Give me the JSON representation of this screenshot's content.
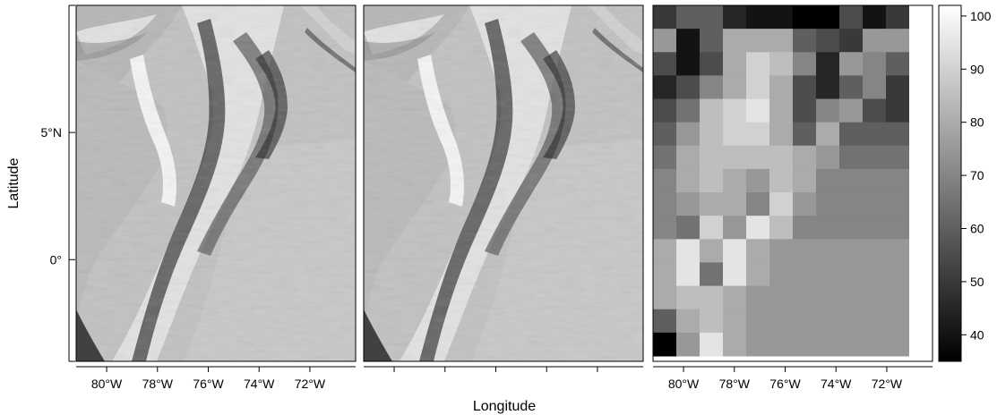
{
  "figure": {
    "y_axis_title": "Latitude",
    "x_axis_title": "Longitude",
    "lat_ticks": [
      {
        "label": "5°N",
        "lat": 5
      },
      {
        "label": "0°",
        "lat": 0
      }
    ],
    "lon_ticks": [
      {
        "label": "80°W",
        "lon": -80
      },
      {
        "label": "78°W",
        "lon": -78
      },
      {
        "label": "76°W",
        "lon": -76
      },
      {
        "label": "74°W",
        "lon": -74
      },
      {
        "label": "72°W",
        "lon": -72
      }
    ],
    "extent": {
      "lon_min": -81.2,
      "lon_max": -70.2,
      "lat_min": -4.0,
      "lat_max": 10.0
    }
  },
  "panels": [
    {
      "id": "left",
      "content": "shaded-relief-terrain",
      "x_tick_labels_visible": true,
      "y_axis_visible": true
    },
    {
      "id": "middle",
      "content": "shaded-relief-terrain",
      "x_tick_labels_visible": false,
      "y_axis_visible": false
    },
    {
      "id": "right",
      "content": "aggregated-raster-grid",
      "x_tick_labels_visible": true,
      "y_axis_visible": false
    }
  ],
  "legend": {
    "type": "continuous-grayscale",
    "min": 35,
    "max": 102,
    "ticks": [
      "100",
      "90",
      "80",
      "70",
      "60",
      "50",
      "40"
    ],
    "colors": {
      "low": "#000000",
      "high": "#ffffff"
    }
  },
  "grid_raster": {
    "columns": 12,
    "rows": 15,
    "values": [
      [
        50,
        60,
        60,
        45,
        40,
        40,
        35,
        35,
        55,
        40,
        50,
        null
      ],
      [
        75,
        40,
        60,
        80,
        80,
        80,
        60,
        55,
        50,
        75,
        75,
        null
      ],
      [
        55,
        40,
        55,
        80,
        90,
        85,
        70,
        45,
        75,
        70,
        60,
        null
      ],
      [
        45,
        55,
        70,
        80,
        90,
        80,
        55,
        45,
        60,
        70,
        50,
        null
      ],
      [
        55,
        65,
        85,
        90,
        95,
        80,
        55,
        70,
        75,
        55,
        50,
        null
      ],
      [
        60,
        75,
        85,
        90,
        90,
        80,
        60,
        80,
        60,
        60,
        60,
        null
      ],
      [
        65,
        80,
        85,
        85,
        85,
        85,
        80,
        75,
        65,
        65,
        65,
        null
      ],
      [
        70,
        80,
        85,
        80,
        75,
        85,
        80,
        70,
        70,
        70,
        70,
        null
      ],
      [
        70,
        75,
        80,
        80,
        70,
        90,
        75,
        70,
        70,
        70,
        70,
        null
      ],
      [
        70,
        65,
        90,
        75,
        95,
        85,
        70,
        70,
        70,
        70,
        70,
        null
      ],
      [
        80,
        95,
        80,
        95,
        80,
        75,
        75,
        75,
        75,
        75,
        75,
        null
      ],
      [
        80,
        95,
        65,
        95,
        80,
        75,
        75,
        75,
        75,
        75,
        75,
        null
      ],
      [
        80,
        85,
        85,
        80,
        75,
        75,
        75,
        75,
        75,
        75,
        75,
        null
      ],
      [
        60,
        80,
        85,
        80,
        75,
        75,
        75,
        75,
        75,
        75,
        75,
        null
      ],
      [
        35,
        75,
        95,
        80,
        75,
        75,
        75,
        75,
        75,
        75,
        75,
        null
      ]
    ]
  }
}
